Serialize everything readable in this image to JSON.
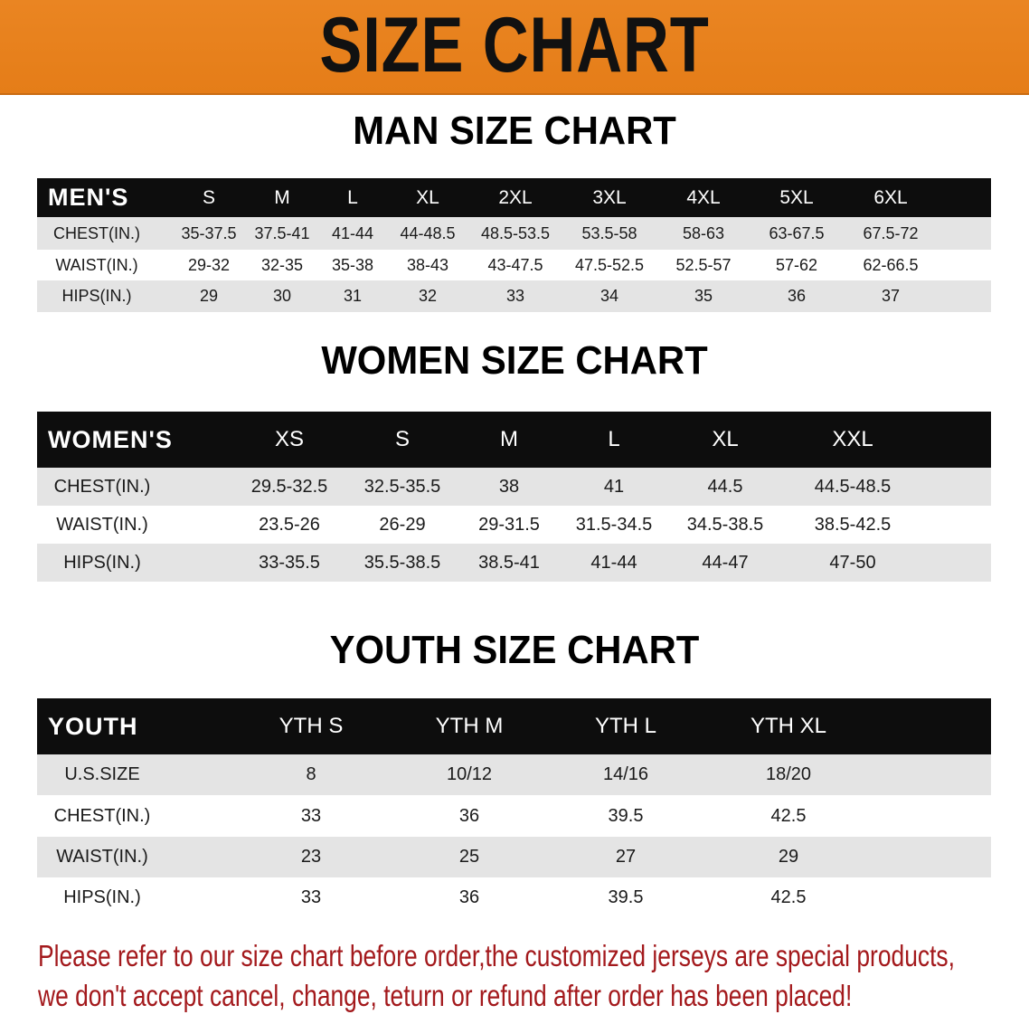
{
  "banner": {
    "title": "SIZE CHART",
    "color": "#e8801e"
  },
  "men": {
    "title": "MAN SIZE CHART",
    "header": [
      "MEN'S",
      "S",
      "M",
      "L",
      "XL",
      "2XL",
      "3XL",
      "4XL",
      "5XL",
      "6XL"
    ],
    "rows": [
      [
        "CHEST(IN.)",
        "35-37.5",
        "37.5-41",
        "41-44",
        "44-48.5",
        "48.5-53.5",
        "53.5-58",
        "58-63",
        "63-67.5",
        "67.5-72"
      ],
      [
        "WAIST(IN.)",
        "29-32",
        "32-35",
        "35-38",
        "38-43",
        "43-47.5",
        "47.5-52.5",
        "52.5-57",
        "57-62",
        "62-66.5"
      ],
      [
        "HIPS(IN.)",
        "29",
        "30",
        "31",
        "32",
        "33",
        "34",
        "35",
        "36",
        "37"
      ]
    ]
  },
  "women": {
    "title": "WOMEN SIZE CHART",
    "header": [
      "WOMEN'S",
      "XS",
      "S",
      "M",
      "L",
      "XL",
      "XXL"
    ],
    "rows": [
      [
        "CHEST(IN.)",
        "29.5-32.5",
        "32.5-35.5",
        "38",
        "41",
        "44.5",
        "44.5-48.5"
      ],
      [
        "WAIST(IN.)",
        "23.5-26",
        "26-29",
        "29-31.5",
        "31.5-34.5",
        "34.5-38.5",
        "38.5-42.5"
      ],
      [
        "HIPS(IN.)",
        "33-35.5",
        "35.5-38.5",
        "38.5-41",
        "41-44",
        "44-47",
        "47-50"
      ]
    ]
  },
  "youth": {
    "title": "YOUTH SIZE CHART",
    "header": [
      "YOUTH",
      "YTH S",
      "YTH M",
      "YTH L",
      "YTH XL"
    ],
    "rows": [
      [
        "U.S.SIZE",
        "8",
        "10/12",
        "14/16",
        "18/20"
      ],
      [
        "CHEST(IN.)",
        "33",
        "36",
        "39.5",
        "42.5"
      ],
      [
        "WAIST(IN.)",
        "23",
        "25",
        "27",
        "29"
      ],
      [
        "HIPS(IN.)",
        "33",
        "36",
        "39.5",
        "42.5"
      ]
    ]
  },
  "note": {
    "line1": "Please refer to our size chart before order,the customized jerseys are special products,",
    "line2": "we don't accept cancel, change, teturn or refund after order has been placed!",
    "color": "#a3191c"
  }
}
